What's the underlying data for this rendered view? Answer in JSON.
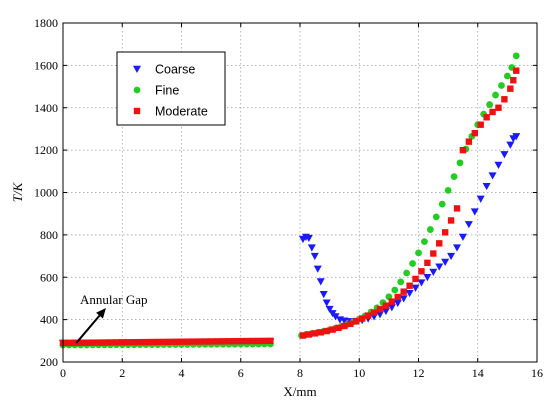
{
  "chart_data": {
    "type": "scatter",
    "title": "",
    "xlabel": "X/mm",
    "ylabel": "T/K",
    "xlim": [
      0,
      16
    ],
    "ylim": [
      200,
      1800
    ],
    "xticks": [
      0,
      2,
      4,
      6,
      8,
      10,
      12,
      14,
      16
    ],
    "yticks": [
      200,
      400,
      600,
      800,
      1000,
      1200,
      1400,
      1600,
      1800
    ],
    "grid": true,
    "legend_position": "top-left",
    "annotation": {
      "text": "Annular Gap",
      "arrow_from": [
        0.45,
        290
      ],
      "arrow_to": [
        1.45,
        455
      ]
    },
    "series": [
      {
        "name": "Coarse",
        "marker": "triangle-down",
        "color": "#1a1aff",
        "segments": [
          {
            "x_start": 0.0,
            "x_end": 7.0,
            "step": 0.2,
            "points": [
              [
                0,
                290
              ],
              [
                7,
                295
              ]
            ]
          },
          {
            "points": [
              [
                8.1,
                780
              ],
              [
                8.2,
                790
              ],
              [
                8.3,
                785
              ],
              [
                8.4,
                740
              ],
              [
                8.5,
                700
              ],
              [
                8.6,
                640
              ],
              [
                8.7,
                580
              ],
              [
                8.8,
                520
              ],
              [
                8.9,
                480
              ],
              [
                9.0,
                450
              ],
              [
                9.1,
                430
              ],
              [
                9.2,
                415
              ],
              [
                9.35,
                400
              ],
              [
                9.5,
                395
              ],
              [
                9.7,
                392
              ],
              [
                9.9,
                393
              ],
              [
                10.1,
                397
              ],
              [
                10.3,
                405
              ],
              [
                10.5,
                415
              ],
              [
                10.7,
                425
              ],
              [
                10.9,
                440
              ],
              [
                11.1,
                458
              ],
              [
                11.3,
                478
              ],
              [
                11.5,
                500
              ],
              [
                11.7,
                525
              ],
              [
                11.9,
                550
              ],
              [
                12.1,
                575
              ],
              [
                12.3,
                600
              ],
              [
                12.5,
                625
              ],
              [
                12.7,
                650
              ],
              [
                12.9,
                672
              ],
              [
                13.1,
                700
              ],
              [
                13.3,
                740
              ],
              [
                13.5,
                790
              ],
              [
                13.7,
                850
              ],
              [
                13.9,
                910
              ],
              [
                14.1,
                970
              ],
              [
                14.3,
                1030
              ],
              [
                14.5,
                1080
              ],
              [
                14.7,
                1130
              ],
              [
                14.9,
                1180
              ],
              [
                15.1,
                1225
              ],
              [
                15.2,
                1255
              ],
              [
                15.3,
                1265
              ]
            ]
          }
        ]
      },
      {
        "name": "Fine",
        "marker": "circle",
        "color": "#22cc22",
        "segments": [
          {
            "x_start": 0.0,
            "x_end": 7.0,
            "step": 0.2,
            "points": [
              [
                0,
                280
              ],
              [
                7,
                285
              ]
            ]
          },
          {
            "points": [
              [
                8.05,
                325
              ],
              [
                8.2,
                330
              ],
              [
                8.4,
                335
              ],
              [
                8.6,
                340
              ],
              [
                8.8,
                345
              ],
              [
                9.0,
                352
              ],
              [
                9.2,
                360
              ],
              [
                9.4,
                368
              ],
              [
                9.6,
                378
              ],
              [
                9.8,
                390
              ],
              [
                10.0,
                403
              ],
              [
                10.2,
                418
              ],
              [
                10.4,
                436
              ],
              [
                10.6,
                456
              ],
              [
                10.8,
                480
              ],
              [
                11.0,
                508
              ],
              [
                11.2,
                540
              ],
              [
                11.4,
                578
              ],
              [
                11.6,
                620
              ],
              [
                11.8,
                665
              ],
              [
                12.0,
                715
              ],
              [
                12.2,
                768
              ],
              [
                12.4,
                825
              ],
              [
                12.6,
                885
              ],
              [
                12.8,
                945
              ],
              [
                13.0,
                1010
              ],
              [
                13.2,
                1075
              ],
              [
                13.4,
                1140
              ],
              [
                13.6,
                1205
              ],
              [
                13.8,
                1265
              ],
              [
                14.0,
                1320
              ],
              [
                14.2,
                1370
              ],
              [
                14.4,
                1415
              ],
              [
                14.6,
                1460
              ],
              [
                14.8,
                1505
              ],
              [
                15.0,
                1550
              ],
              [
                15.15,
                1590
              ],
              [
                15.3,
                1645
              ]
            ]
          }
        ]
      },
      {
        "name": "Moderate",
        "marker": "square",
        "color": "#ee1111",
        "segments": [
          {
            "x_start": 0.0,
            "x_end": 7.0,
            "step": 0.2,
            "points": [
              [
                0,
                290
              ],
              [
                7,
                300
              ]
            ]
          },
          {
            "points": [
              [
                8.1,
                325
              ],
              [
                8.3,
                330
              ],
              [
                8.5,
                335
              ],
              [
                8.7,
                340
              ],
              [
                8.9,
                346
              ],
              [
                9.1,
                353
              ],
              [
                9.3,
                361
              ],
              [
                9.5,
                370
              ],
              [
                9.7,
                380
              ],
              [
                9.9,
                392
              ],
              [
                10.1,
                405
              ],
              [
                10.3,
                419
              ],
              [
                10.5,
                433
              ],
              [
                10.7,
                449
              ],
              [
                10.9,
                466
              ],
              [
                11.1,
                485
              ],
              [
                11.3,
                507
              ],
              [
                11.5,
                532
              ],
              [
                11.7,
                560
              ],
              [
                11.9,
                592
              ],
              [
                12.1,
                628
              ],
              [
                12.3,
                668
              ],
              [
                12.5,
                712
              ],
              [
                12.7,
                760
              ],
              [
                12.9,
                812
              ],
              [
                13.1,
                868
              ],
              [
                13.3,
                925
              ],
              [
                13.5,
                1200
              ],
              [
                13.7,
                1240
              ],
              [
                13.9,
                1280
              ],
              [
                14.1,
                1320
              ],
              [
                14.3,
                1355
              ],
              [
                14.5,
                1380
              ],
              [
                14.7,
                1400
              ],
              [
                14.9,
                1440
              ],
              [
                15.1,
                1490
              ],
              [
                15.2,
                1530
              ],
              [
                15.3,
                1575
              ]
            ]
          }
        ]
      }
    ]
  }
}
